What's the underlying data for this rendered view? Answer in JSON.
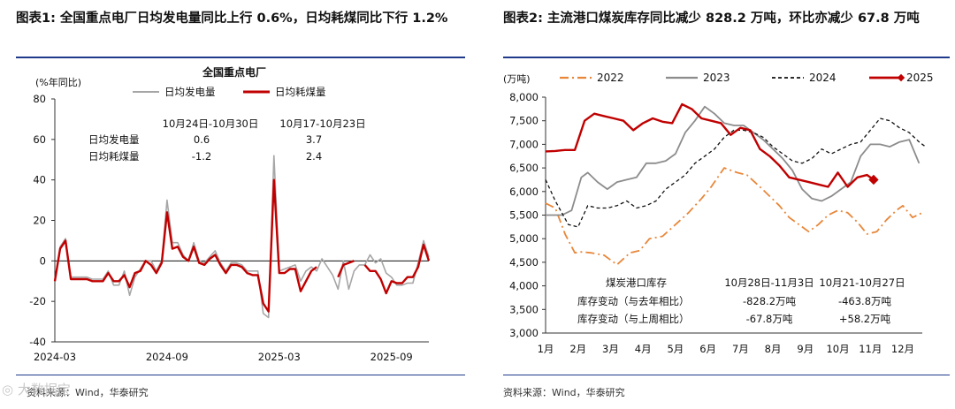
{
  "left_panel": {
    "figure_title": "图表1: 全国重点电厂日均发电量同比上行 0.6%，日均耗煤同比下行 1.2%",
    "source": "资料来源：Wind，华泰研究"
  },
  "right_panel": {
    "figure_title": "图表2: 主流港口煤炭库存同比减少 828.2 万吨，环比亦减少 67.8 万吨",
    "source": "资料来源：Wind，华泰研究"
  },
  "chart_data": [
    {
      "type": "line",
      "title": "全国重点电厂",
      "ylabel": "(%年同比)",
      "ylim": [
        -40,
        80
      ],
      "yticks": [
        -40,
        -20,
        0,
        20,
        40,
        60,
        80
      ],
      "xticks": [
        "2024-03",
        "2024-09",
        "2025-03",
        "2025-09"
      ],
      "legend_position": "top",
      "colors": {
        "power": "#a6a6a6",
        "coal": "#c00000"
      },
      "series": [
        {
          "name": "日均发电量",
          "values": [
            -10,
            7,
            11,
            -8,
            -8,
            -8,
            -8,
            -9,
            -9,
            -9,
            -5,
            -12,
            -12,
            -5,
            -17,
            -8,
            -4,
            0,
            0,
            -5,
            0,
            30,
            9,
            9,
            3,
            0,
            9,
            0,
            -1,
            2,
            5,
            -1,
            -5,
            -1,
            -1,
            -2,
            -5,
            -5,
            -5,
            -26,
            -28,
            52,
            -5,
            -4,
            -3,
            -2,
            -10,
            -5,
            -3,
            -5,
            1,
            -3,
            -7,
            -14,
            0,
            -14,
            -5,
            -2,
            -2,
            3,
            -1,
            1,
            -6,
            -8,
            -12,
            -12,
            -11,
            -11,
            -1,
            10,
            2
          ]
        },
        {
          "name": "日均耗煤量",
          "values": [
            -10,
            6,
            10,
            -9,
            -9,
            -9,
            -9,
            -10,
            -10,
            -10,
            -6,
            -10,
            -10,
            -7,
            -13,
            -6,
            -5,
            0,
            -2,
            -6,
            -1,
            24,
            6,
            7,
            2,
            0,
            7,
            -1,
            -2,
            1,
            3,
            -2,
            -6,
            -2,
            -2,
            -3,
            -6,
            -7,
            -7,
            -21,
            -25,
            40,
            -6,
            -6,
            -4,
            -4,
            -15,
            -10,
            -5,
            -3,
            null,
            null,
            null,
            -8,
            -2,
            -1,
            0,
            null,
            -2,
            -5,
            -5,
            -9,
            -16,
            -10,
            -11,
            -11,
            -8,
            -8,
            -3,
            8,
            0
          ]
        }
      ],
      "annotation": {
        "headers": [
          "10月24日-10月30日",
          "10月17-10月23日"
        ],
        "rows": [
          {
            "label": "日均发电量",
            "values": [
              "0.6",
              "3.7"
            ]
          },
          {
            "label": "日均耗煤量",
            "values": [
              "-1.2",
              "2.4"
            ]
          }
        ]
      }
    },
    {
      "type": "line",
      "ylabel": "(万吨)",
      "ylim": [
        3000,
        8000
      ],
      "yticks": [
        3000,
        3500,
        4000,
        4500,
        5000,
        5500,
        6000,
        6500,
        7000,
        7500,
        8000
      ],
      "categories": [
        "1月",
        "2月",
        "3月",
        "4月",
        "5月",
        "6月",
        "7月",
        "8月",
        "9月",
        "10月",
        "11月",
        "12月"
      ],
      "legend_position": "top",
      "colors": {
        "2022": "#e8873a",
        "2023": "#8c8c8c",
        "2024": "#111111",
        "2025": "#c00000"
      },
      "series": [
        {
          "name": "2022",
          "x": [
            1.0,
            1.3,
            1.6,
            1.9,
            2.1,
            2.4,
            2.8,
            3.2,
            3.6,
            3.9,
            4.2,
            4.6,
            5.0,
            5.4,
            5.8,
            6.1,
            6.5,
            6.9,
            7.2,
            7.6,
            7.9,
            8.2,
            8.5,
            8.8,
            9.1,
            9.4,
            9.7,
            10.0,
            10.3,
            10.6,
            10.9,
            11.2,
            11.5,
            11.8,
            12.0,
            12.3,
            12.6
          ],
          "values": [
            5750,
            5650,
            5100,
            4700,
            4720,
            4700,
            4650,
            4450,
            4700,
            4750,
            5000,
            5050,
            5300,
            5550,
            5850,
            6100,
            6500,
            6400,
            6350,
            6100,
            5900,
            5700,
            5450,
            5300,
            5150,
            5300,
            5500,
            5600,
            5550,
            5350,
            5100,
            5150,
            5400,
            5600,
            5700,
            5450,
            5550
          ]
        },
        {
          "name": "2023",
          "x": [
            1.0,
            1.5,
            1.8,
            2.1,
            2.3,
            2.6,
            2.9,
            3.2,
            3.5,
            3.8,
            4.1,
            4.4,
            4.7,
            5.0,
            5.3,
            5.6,
            5.9,
            6.2,
            6.5,
            6.8,
            7.1,
            7.4,
            7.7,
            8.0,
            8.3,
            8.6,
            8.9,
            9.2,
            9.5,
            9.8,
            10.1,
            10.4,
            10.7,
            11.0,
            11.3,
            11.6,
            11.9,
            12.2,
            12.5
          ],
          "values": [
            5500,
            5500,
            5600,
            6300,
            6400,
            6200,
            6050,
            6200,
            6250,
            6300,
            6600,
            6600,
            6650,
            6800,
            7250,
            7500,
            7800,
            7650,
            7450,
            7400,
            7400,
            7250,
            7100,
            6900,
            6700,
            6450,
            6050,
            5850,
            5800,
            5900,
            6050,
            6200,
            6750,
            7000,
            7000,
            6950,
            7050,
            7100,
            6600
          ]
        },
        {
          "name": "2024",
          "x": [
            1.0,
            1.3,
            1.7,
            2.0,
            2.3,
            2.6,
            2.9,
            3.2,
            3.5,
            3.8,
            4.1,
            4.4,
            4.7,
            5.0,
            5.3,
            5.6,
            5.9,
            6.2,
            6.5,
            6.8,
            7.1,
            7.4,
            7.7,
            8.0,
            8.3,
            8.6,
            8.9,
            9.2,
            9.5,
            9.8,
            10.1,
            10.4,
            10.7,
            11.0,
            11.3,
            11.6,
            11.9,
            12.2,
            12.5,
            12.7
          ],
          "values": [
            6250,
            5800,
            5300,
            5250,
            5700,
            5650,
            5650,
            5700,
            5800,
            5650,
            5700,
            5800,
            6050,
            6200,
            6350,
            6600,
            6750,
            6900,
            7150,
            7300,
            7300,
            7250,
            7150,
            6950,
            6800,
            6650,
            6600,
            6700,
            6900,
            6800,
            6900,
            7000,
            7050,
            7300,
            7550,
            7500,
            7350,
            7250,
            7050,
            6950
          ]
        },
        {
          "name": "2025",
          "x": [
            1.0,
            1.3,
            1.6,
            1.9,
            2.2,
            2.5,
            2.8,
            3.1,
            3.4,
            3.7,
            4.0,
            4.3,
            4.6,
            4.9,
            5.2,
            5.5,
            5.8,
            6.1,
            6.4,
            6.7,
            7.0,
            7.3,
            7.6,
            7.9,
            8.2,
            8.5,
            8.8,
            9.1,
            9.4,
            9.7,
            10.0,
            10.3,
            10.6,
            10.9,
            11.1
          ],
          "values": [
            6850,
            6860,
            6880,
            6880,
            7500,
            7650,
            7600,
            7550,
            7500,
            7300,
            7450,
            7550,
            7480,
            7450,
            7850,
            7750,
            7550,
            7500,
            7450,
            7200,
            7350,
            7300,
            6900,
            6750,
            6550,
            6300,
            6250,
            6200,
            6150,
            6100,
            6400,
            6100,
            6300,
            6350,
            6250
          ]
        }
      ],
      "annotation": {
        "title": "煤炭港口库存",
        "headers": [
          "10月28日-11月3日",
          "10月21-10月27日"
        ],
        "rows": [
          {
            "label": "库存变动（与去年相比）",
            "values": [
              "-828.2万吨",
              "-463.8万吨"
            ]
          },
          {
            "label": "库存变动（与上周相比）",
            "values": [
              "-67.8万吨",
              "+58.2万吨"
            ]
          }
        ]
      }
    }
  ]
}
